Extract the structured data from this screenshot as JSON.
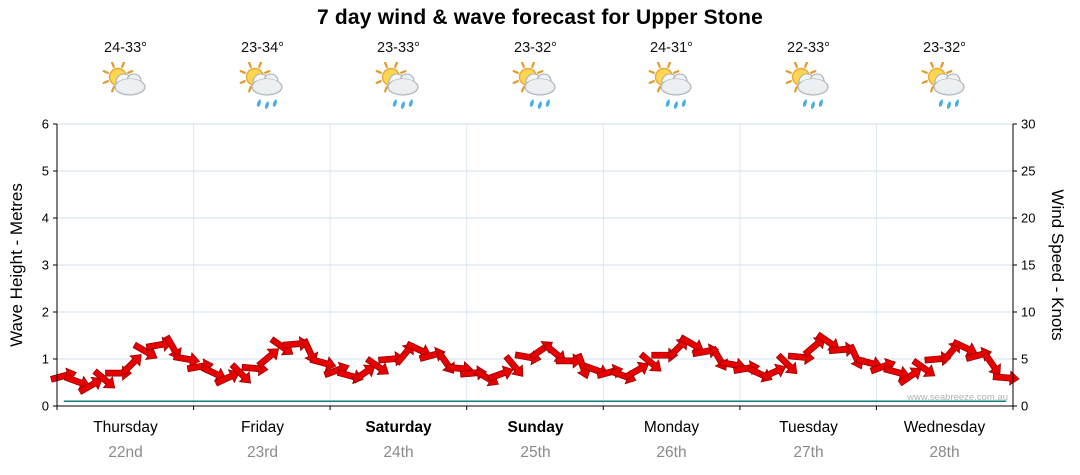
{
  "title": "7 day wind & wave forecast for Upper Stone",
  "watermark": "www.seabreeze.com.au",
  "days": [
    {
      "name": "Thursday",
      "date": "22nd",
      "temp": "24-33°",
      "icon": "sun-cloud",
      "bold": false
    },
    {
      "name": "Friday",
      "date": "23rd",
      "temp": "23-34°",
      "icon": "sun-cloud-rain",
      "bold": false
    },
    {
      "name": "Saturday",
      "date": "24th",
      "temp": "23-33°",
      "icon": "sun-cloud-rain",
      "bold": true
    },
    {
      "name": "Sunday",
      "date": "25th",
      "temp": "23-32°",
      "icon": "sun-cloud-rain",
      "bold": true
    },
    {
      "name": "Monday",
      "date": "26th",
      "temp": "24-31°",
      "icon": "sun-cloud-rain",
      "bold": false
    },
    {
      "name": "Tuesday",
      "date": "27th",
      "temp": "22-33°",
      "icon": "sun-cloud-rain",
      "bold": false
    },
    {
      "name": "Wednesday",
      "date": "28th",
      "temp": "23-32°",
      "icon": "sun-cloud-rain",
      "bold": false
    }
  ],
  "axes": {
    "left": {
      "label": "Wave Height - Metres",
      "ticks": [
        0,
        1,
        2,
        3,
        4,
        5,
        6
      ],
      "range": [
        0,
        6
      ]
    },
    "right": {
      "label": "Wind Speed - Knots",
      "ticks": [
        0,
        5,
        10,
        15,
        20,
        25,
        30
      ],
      "range": [
        0,
        30
      ]
    }
  },
  "colors": {
    "wind_arrow": "#e60000",
    "wind_arrow_outline": "#8f0000",
    "wave_line": "#0f7b7b",
    "gridline": "#cfe0ef",
    "day_gridline": "#dce8f3",
    "axis": "#000000",
    "tick_text": "#000000",
    "date_text": "#8a8a8a",
    "watermark_text": "#b3b3b3"
  },
  "chart_data": {
    "type": "line",
    "title": "7 day wind & wave forecast for Upper Stone",
    "x_categories": [
      "Thursday 22nd",
      "Friday 23rd",
      "Saturday 24th",
      "Sunday 25th",
      "Monday 26th",
      "Tuesday 27th",
      "Wednesday 28th"
    ],
    "points_per_day": 10,
    "legend": "none",
    "grid": true,
    "series": [
      {
        "name": "Wind Speed",
        "unit": "knots",
        "axis": "right",
        "style": "red-arrows",
        "ylim": [
          0,
          30
        ],
        "values": [
          3.2,
          2.6,
          2.2,
          2.8,
          3.5,
          4.5,
          5.8,
          6.5,
          6.2,
          5.0,
          4.2,
          3.5,
          3.0,
          3.4,
          4.0,
          5.2,
          6.3,
          6.6,
          5.8,
          4.6,
          3.8,
          3.2,
          3.5,
          4.2,
          5.0,
          5.6,
          6.0,
          5.4,
          4.6,
          4.0,
          3.5,
          3.0,
          3.4,
          4.2,
          5.2,
          6.0,
          5.6,
          4.8,
          4.2,
          3.8,
          3.6,
          3.2,
          3.8,
          4.6,
          5.4,
          6.2,
          6.6,
          5.8,
          5.0,
          4.4,
          4.0,
          3.4,
          3.6,
          4.4,
          5.2,
          6.4,
          6.8,
          6.0,
          5.2,
          4.6,
          4.2,
          3.6,
          3.2,
          4.0,
          5.0,
          5.8,
          6.2,
          5.4,
          4.4,
          3.0
        ],
        "directions_deg": [
          75,
          110,
          60,
          130,
          90,
          45,
          120,
          80,
          150,
          100,
          80,
          115,
          65,
          135,
          95,
          50,
          125,
          85,
          155,
          105,
          70,
          105,
          55,
          125,
          85,
          40,
          115,
          75,
          145,
          95,
          85,
          120,
          70,
          140,
          100,
          55,
          130,
          90,
          160,
          110,
          75,
          110,
          60,
          130,
          90,
          45,
          120,
          80,
          150,
          100,
          80,
          115,
          65,
          135,
          95,
          50,
          125,
          85,
          155,
          105,
          70,
          105,
          55,
          125,
          85,
          40,
          115,
          75,
          145,
          95
        ]
      },
      {
        "name": "Wave Height",
        "unit": "m",
        "axis": "left",
        "style": "teal-line",
        "ylim": [
          0,
          6
        ],
        "values": [
          0.1,
          0.1,
          0.1,
          0.1,
          0.1,
          0.1,
          0.1,
          0.1,
          0.1,
          0.1,
          0.1,
          0.1,
          0.1,
          0.1,
          0.1,
          0.1,
          0.1,
          0.1,
          0.1,
          0.1,
          0.1,
          0.1,
          0.1,
          0.1,
          0.1,
          0.1,
          0.1,
          0.1,
          0.1,
          0.1,
          0.1,
          0.1,
          0.1,
          0.1,
          0.1,
          0.1,
          0.1,
          0.1,
          0.1,
          0.1,
          0.1,
          0.1,
          0.1,
          0.1,
          0.1,
          0.1,
          0.1,
          0.1,
          0.1,
          0.1,
          0.1,
          0.1,
          0.1,
          0.1,
          0.1,
          0.1,
          0.1,
          0.1,
          0.1,
          0.1,
          0.1,
          0.1,
          0.1,
          0.1,
          0.1,
          0.1,
          0.1,
          0.1,
          0.1,
          0.1
        ]
      }
    ]
  }
}
